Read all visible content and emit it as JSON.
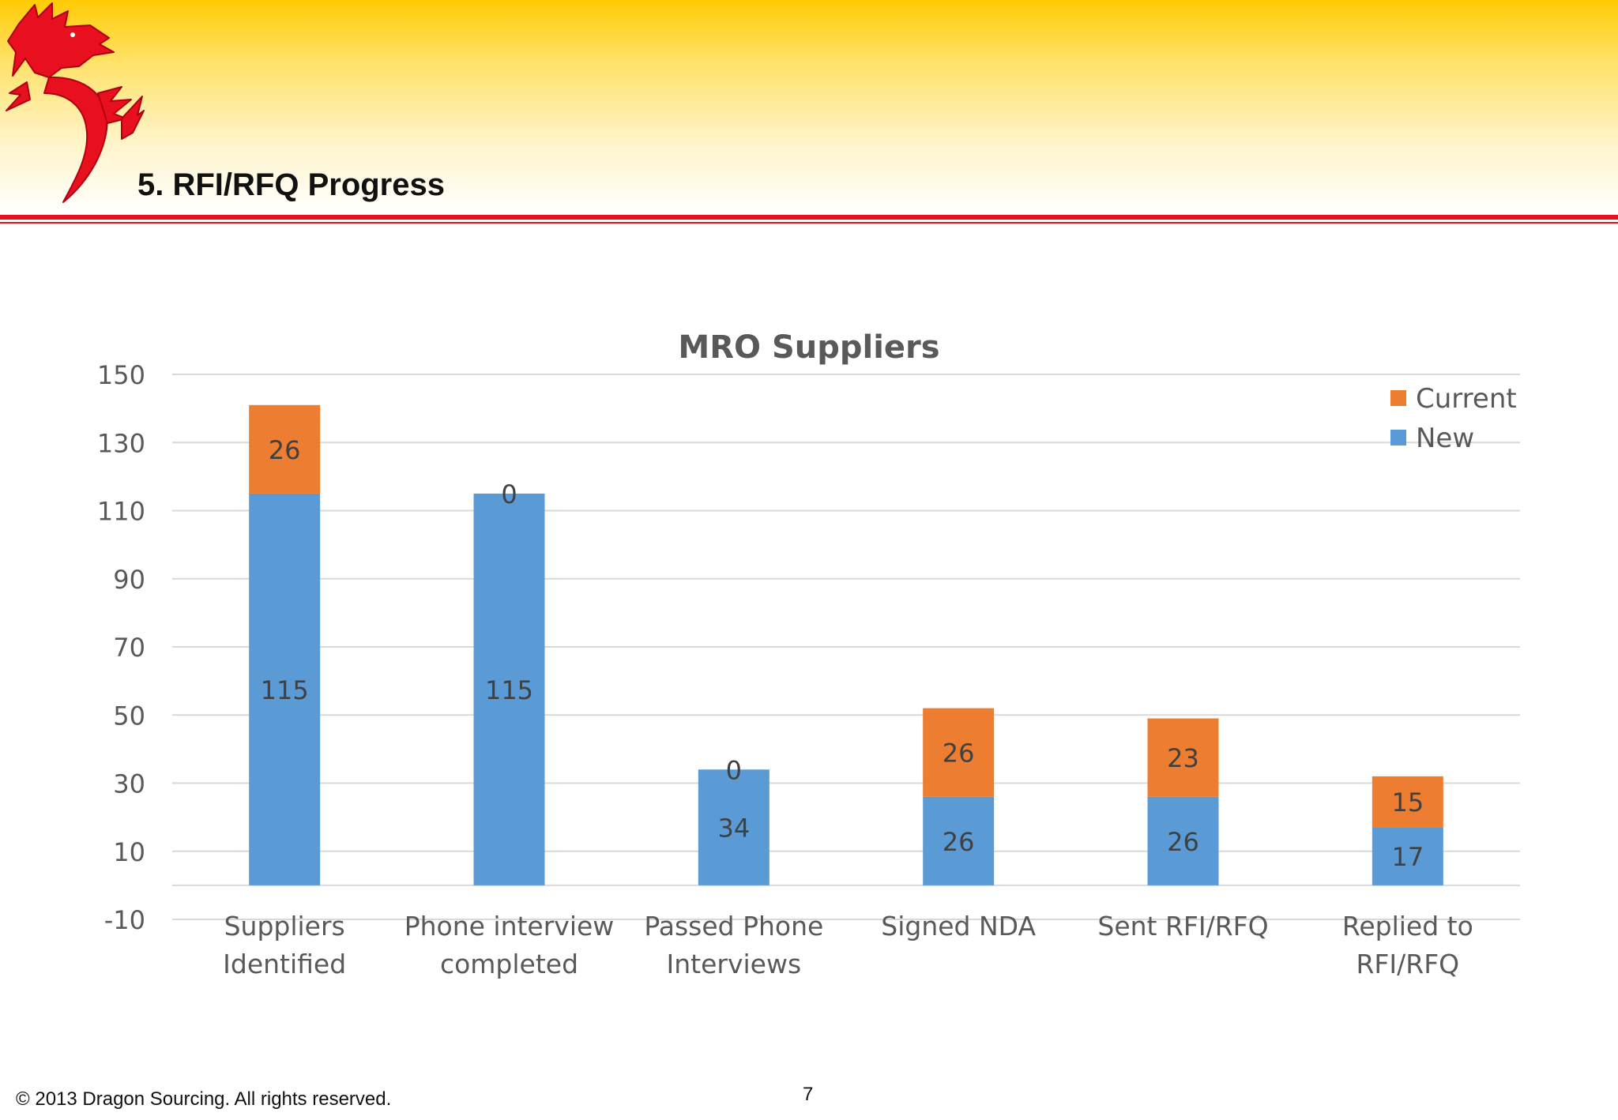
{
  "slide": {
    "title": "5. RFI/RFQ Progress",
    "copyright": "© 2013 Dragon Sourcing. All rights reserved.",
    "page_number": "7",
    "logo_icon": "red-dragon-logo"
  },
  "colors": {
    "header_gold": "#ffcb05",
    "rule_red": "#e8101e",
    "new": "#5b9bd5",
    "current": "#ed7d31",
    "grid": "#d9d9d9",
    "text": "#595959"
  },
  "chart_data": {
    "type": "bar",
    "stacked": true,
    "title": "MRO Suppliers",
    "xlabel": "",
    "ylabel": "",
    "ylim": [
      -10,
      150
    ],
    "yticks": [
      150,
      130,
      110,
      90,
      70,
      50,
      30,
      10,
      -10
    ],
    "grid": true,
    "legend": "top-right",
    "categories": [
      [
        "Suppliers",
        "Identified"
      ],
      [
        "Phone interview",
        "completed"
      ],
      [
        "Passed Phone",
        "Interviews"
      ],
      [
        "Signed NDA"
      ],
      [
        "Sent RFI/RFQ"
      ],
      [
        "Replied to",
        "RFI/RFQ"
      ]
    ],
    "series": [
      {
        "name": "New",
        "color": "#5b9bd5",
        "values": [
          115,
          115,
          34,
          26,
          26,
          17
        ]
      },
      {
        "name": "Current",
        "color": "#ed7d31",
        "values": [
          26,
          0,
          0,
          26,
          23,
          15
        ]
      }
    ]
  }
}
